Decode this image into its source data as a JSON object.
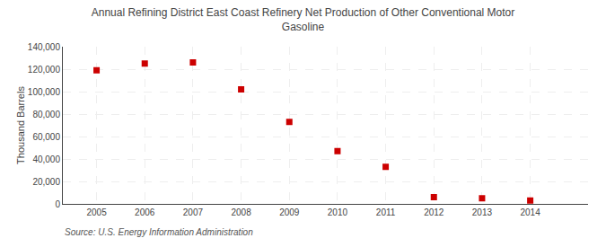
{
  "chart_data": {
    "type": "scatter",
    "title": "Annual Refining District East Coast Refinery Net Production of Other Conventional Motor\nGasoline",
    "ylabel": "Thousand Barrels",
    "annotations": [
      "Source: U.S. Energy Information Administration"
    ],
    "x": [
      2005,
      2006,
      2007,
      2008,
      2009,
      2010,
      2011,
      2012,
      2013,
      2014
    ],
    "values": [
      119000,
      125000,
      126000,
      102000,
      73000,
      47000,
      33000,
      6000,
      5000,
      3000
    ],
    "color": "#cc0000",
    "marker": "square",
    "xlim": [
      2004.3,
      2015.2
    ],
    "xticks": [
      2005,
      2006,
      2007,
      2008,
      2009,
      2010,
      2011,
      2012,
      2013,
      2014
    ],
    "ylim": [
      0,
      140000
    ],
    "yticks": [
      0,
      {
        "value": 20000,
        "label": "20,000"
      },
      {
        "value": 40000,
        "label": "40,000"
      },
      {
        "value": 60000,
        "label": "60,000"
      },
      {
        "value": 80000,
        "label": "80,000"
      },
      {
        "value": 100000,
        "label": "100,000"
      },
      {
        "value": 120000,
        "label": "120,000"
      },
      {
        "value": 140000,
        "label": "140,000"
      }
    ],
    "grid": true
  }
}
